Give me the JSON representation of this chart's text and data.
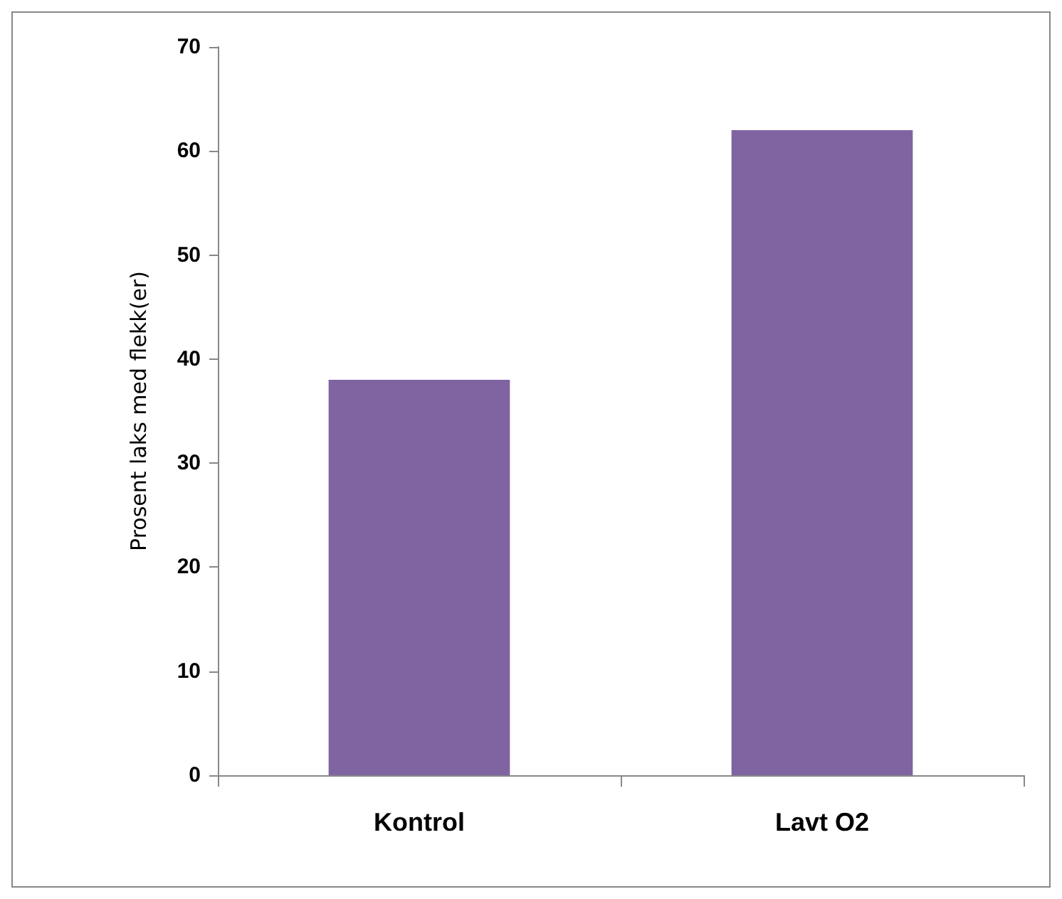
{
  "chart_data": {
    "type": "bar",
    "ylabel": "Prosent laks med flekk(er)",
    "categories": [
      "Kontrol",
      "Lavt O2"
    ],
    "values": [
      38,
      62
    ],
    "color": "#8064a2",
    "ylim": [
      0,
      70
    ],
    "yticks": [
      0,
      10,
      20,
      30,
      40,
      50,
      60,
      70
    ],
    "grid": false
  }
}
